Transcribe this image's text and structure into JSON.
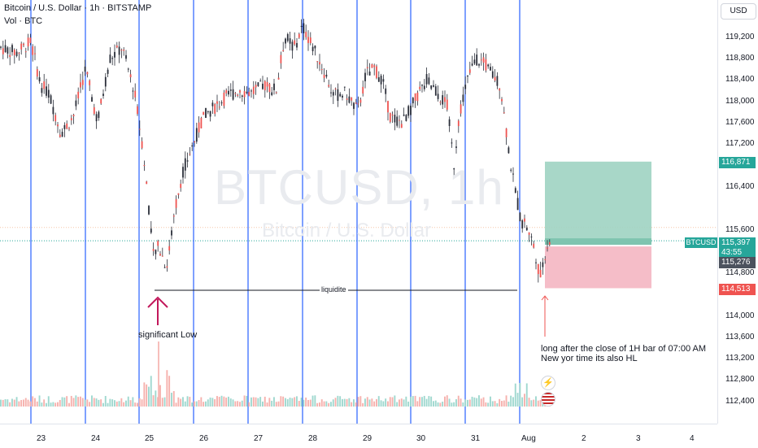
{
  "header": {
    "symbol_title": "Bitcoin / U.S. Dollar · 1h · BITSTAMP",
    "volume_label": "Vol · BTC"
  },
  "watermark": {
    "main": "BTCUSD, 1h",
    "sub": "Bitcoin / U.S. Dollar"
  },
  "price_axis": {
    "currency_button": "USD",
    "ticks": [
      "119,200",
      "118,800",
      "118,400",
      "118,000",
      "117,600",
      "117,200",
      "116,400",
      "115,600",
      "114,800",
      "114,000",
      "113,600",
      "113,200",
      "112,800",
      "112,400"
    ],
    "tags": {
      "target": "116,871",
      "symbol": "BTCUSD",
      "current": "115,397",
      "countdown": "43:55",
      "entry": "115,276",
      "stop": "114,513"
    }
  },
  "time_axis": {
    "labels": [
      "23",
      "24",
      "25",
      "26",
      "27",
      "28",
      "29",
      "30",
      "31",
      "Aug",
      "2",
      "3",
      "4"
    ]
  },
  "annotations": {
    "liquidity": "liquidite",
    "significant_low": "significant Low",
    "note_line1": "long after the close of 1H bar of 07:00 AM",
    "note_line2": "New yor time its also HL"
  },
  "colors": {
    "up": "#26a69a",
    "down": "#ef5350",
    "candle_body": "#2a2e39",
    "session_line": "#2962ff",
    "arrow": "#c2185b",
    "profit_zone": "#9fd3c2",
    "loss_zone": "#f4b6c2"
  },
  "icons": {
    "event_1": "lightning-icon",
    "event_2": "us-flag-icon"
  }
}
